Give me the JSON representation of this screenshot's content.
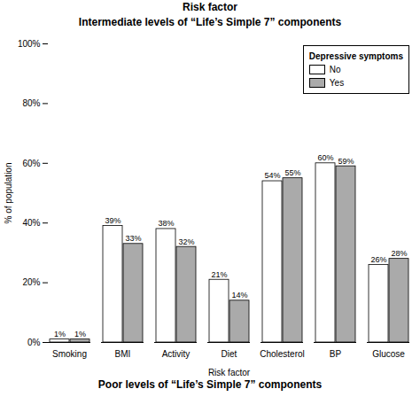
{
  "chart_data": {
    "type": "bar",
    "title": "Intermediate levels of “Life’s Simple 7” components",
    "xlabel": "Risk factor",
    "ylabel": "% of population",
    "annotations": [
      "Risk factor",
      "Poor levels of “Life’s Simple 7” components"
    ],
    "categories": [
      "Smoking",
      "BMI",
      "Activity",
      "Diet",
      "Cholesterol",
      "BP",
      "Glucose"
    ],
    "series": [
      {
        "name": "No",
        "color": "#FFFFFF",
        "values": [
          1,
          39,
          38,
          21,
          54,
          60,
          26
        ],
        "value_labels": [
          "1%",
          "39%",
          "38%",
          "21%",
          "54%",
          "60%",
          "26%"
        ]
      },
      {
        "name": "Yes",
        "color": "#AAAAAA",
        "values": [
          1,
          33,
          32,
          14,
          55,
          59,
          28
        ],
        "value_labels": [
          "1%",
          "33%",
          "32%",
          "14%",
          "55%",
          "59%",
          "28%"
        ]
      }
    ],
    "legend_title": "Depressive symptoms",
    "legend": "upper right",
    "data_labels": true,
    "ylim": [
      0,
      100
    ],
    "yticks": [
      {
        "value": 0,
        "label": "0%"
      },
      {
        "value": 20,
        "label": "20%"
      },
      {
        "value": 40,
        "label": "40%"
      },
      {
        "value": 60,
        "label": "60%"
      },
      {
        "value": 80,
        "label": "80%"
      },
      {
        "value": 100,
        "label": "100%"
      }
    ]
  }
}
